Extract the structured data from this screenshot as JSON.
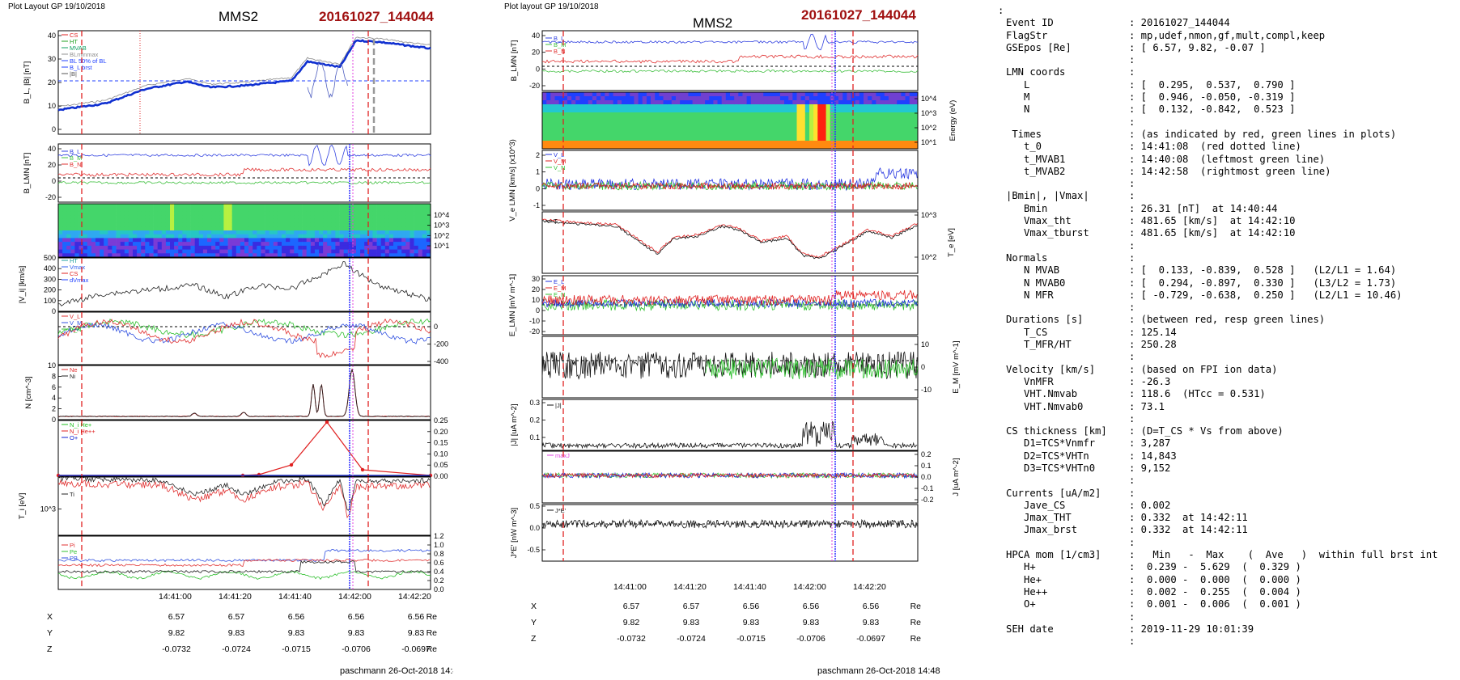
{
  "left": {
    "header": "Plot Layout GP 19/10/2018",
    "title": "MMS2",
    "event": "20161027_144044",
    "footer": "paschmann 26-Oct-2018 14:48",
    "time_ticks": [
      "14:41:00",
      "14:41:20",
      "14:41:40",
      "14:42:00",
      "14:42:20"
    ],
    "coords": {
      "X": [
        "6.57",
        "6.57",
        "6.56",
        "6.56",
        "6.56"
      ],
      "Y": [
        "9.82",
        "9.83",
        "9.83",
        "9.83",
        "9.83"
      ],
      "Z": [
        "-0.0732",
        "-0.0724",
        "-0.0715",
        "-0.0706",
        "-0.0697"
      ],
      "unit": "Re"
    },
    "panels": {
      "b": {
        "ylabel": "B_L, |B| [nT]",
        "ticks": [
          "40",
          "30",
          "20",
          "10",
          "0"
        ],
        "legend": [
          "CS",
          "HT",
          "MVAB",
          "BLminmax",
          "BL 50% of BL",
          "B_L brst",
          "|B|"
        ]
      },
      "blmn": {
        "ylabel": "B_LMN [nT]",
        "ticks": [
          "40",
          "20",
          "0",
          "-20"
        ],
        "legend": [
          "B_L",
          "B_M",
          "B_N"
        ]
      },
      "energy": {
        "ylabel": "Energy (eV)",
        "ticks": [
          "10^4",
          "10^3",
          "10^2",
          "10^1"
        ]
      },
      "vi": {
        "ylabel": "|V_i| [km/s]",
        "ticks": [
          "500",
          "400",
          "300",
          "200",
          "100",
          "0"
        ],
        "legend": [
          "HT",
          "Vmax",
          "CS",
          "dVmax"
        ]
      },
      "vilmn": {
        "ylabel": "V_i LMN [km/s]",
        "ticks": [
          "0",
          "-200",
          "-400"
        ],
        "legend": [
          "V_L",
          "V_M",
          "V_N"
        ]
      },
      "n": {
        "ylabel": "N [cm^-3]",
        "ticks": [
          "10",
          "8",
          "6",
          "4",
          "2",
          "0"
        ],
        "legend": [
          "Ne",
          "Ni"
        ]
      },
      "nhpca": {
        "ylabel": "N_i [cm^-3]",
        "ticks": [
          "0.25",
          "0.20",
          "0.15",
          "0.10",
          "0.05",
          "0.00"
        ],
        "legend": [
          "N_i He+",
          "N_i He++",
          "O+"
        ]
      },
      "ti": {
        "ylabel": "T_i [eV]",
        "ticks": [
          "10^3"
        ],
        "legend": [
          "Ti"
        ]
      },
      "p": {
        "ylabel": "P [nPa]",
        "ticks": [
          "1.2",
          "1.0",
          "0.8",
          "0.6",
          "0.4",
          "0.2",
          "0.0"
        ],
        "legend": [
          "Pi",
          "Pe",
          "PB"
        ]
      }
    }
  },
  "middle": {
    "header": "Plot layout GP 19/10/2018",
    "title": "MMS2",
    "event": "20161027_144044",
    "footer": "paschmann 26-Oct-2018 14:48",
    "time_ticks": [
      "14:41:00",
      "14:41:20",
      "14:41:40",
      "14:42:00",
      "14:42:20"
    ],
    "coords": {
      "X": [
        "6.57",
        "6.57",
        "6.56",
        "6.56",
        "6.56"
      ],
      "Y": [
        "9.82",
        "9.83",
        "9.83",
        "9.83",
        "9.83"
      ],
      "Z": [
        "-0.0732",
        "-0.0724",
        "-0.0715",
        "-0.0706",
        "-0.0697"
      ],
      "unit": "Re"
    },
    "panels": {
      "blmn": {
        "ylabel": "B_LMN [nT]",
        "ticks": [
          "40",
          "20",
          "0",
          "-20"
        ],
        "legend": [
          "B_L",
          "B_M",
          "B_N"
        ]
      },
      "energy": {
        "ylabel": "Energy (eV)",
        "ticks": [
          "10^4",
          "10^3",
          "10^2",
          "10^1"
        ]
      },
      "velmn": {
        "ylabel": "V_e LMN [km/s] (x10^3)",
        "ticks": [
          "2",
          "1",
          "0",
          "-1"
        ],
        "legend": [
          "V_L",
          "V_M",
          "V_N"
        ]
      },
      "te": {
        "ylabel": "T_e [eV]",
        "ticks": [
          "10^3",
          "10^2"
        ],
        "legend": [
          "T"
        ]
      },
      "elmn": {
        "ylabel": "E_LMN [mV m^-1]",
        "ticks": [
          "30",
          "20",
          "10",
          "0",
          "-10",
          "-20"
        ],
        "legend": [
          "E_L",
          "E_M",
          "E_N"
        ]
      },
      "em": {
        "ylabel": "E_M [mV m^-1]",
        "ticks": [
          "10",
          "0",
          "-10"
        ]
      },
      "j": {
        "ylabel": "|J| [uA m^-2]",
        "ticks": [
          "0.3",
          "0.2",
          "0.1"
        ],
        "legend": [
          "|J|"
        ]
      },
      "jlmn": {
        "ylabel": "J [uA m^-2]",
        "ticks": [
          "0.2",
          "0.1",
          "0.0",
          "-0.1",
          "-0.2"
        ],
        "legend": [
          "maxJ"
        ]
      },
      "je": {
        "ylabel": "J*E' [nW m^-3]",
        "ticks": [
          "0.5",
          "0.0",
          "-0.5"
        ],
        "legend": [
          "J*E'"
        ]
      }
    }
  },
  "summary": [
    {
      "label": ":",
      "value": ""
    },
    {
      "label": "Event ID",
      "value": ": 20161027_144044"
    },
    {
      "label": "FlagStr",
      "value": ": mp,udef,nmon,gf,mult,compl,keep"
    },
    {
      "label": "GSEpos [Re]",
      "value": ": [ 6.57, 9.82, -0.07 ]"
    },
    {
      "label": "",
      "value": ":"
    },
    {
      "label": "LMN coords",
      "value": ":"
    },
    {
      "label": "   L",
      "value": ": [  0.295,  0.537,  0.790 ]"
    },
    {
      "label": "   M",
      "value": ": [  0.946, -0.050, -0.319 ]"
    },
    {
      "label": "   N",
      "value": ": [  0.132, -0.842,  0.523 ]"
    },
    {
      "label": "",
      "value": ":"
    },
    {
      "label": " Times",
      "value": ": (as indicated by red, green lines in plots)"
    },
    {
      "label": "   t_0",
      "value": ": 14:41:08  (red dotted line)"
    },
    {
      "label": "   t_MVAB1",
      "value": ": 14:40:08  (leftmost green line)"
    },
    {
      "label": "   t_MVAB2",
      "value": ": 14:42:58  (rightmost green line)"
    },
    {
      "label": "",
      "value": ":"
    },
    {
      "label": "|Bmin|, |Vmax|",
      "value": ":"
    },
    {
      "label": "   Bmin",
      "value": ": 26.31 [nT]  at 14:40:44"
    },
    {
      "label": "   Vmax_tht",
      "value": ": 481.65 [km/s]  at 14:42:10"
    },
    {
      "label": "   Vmax_tburst",
      "value": ": 481.65 [km/s]  at 14:42:10"
    },
    {
      "label": "",
      "value": ":"
    },
    {
      "label": "Normals",
      "value": ":"
    },
    {
      "label": "   N MVAB",
      "value": ": [  0.133, -0.839,  0.528 ]   (L2/L1 = 1.64)"
    },
    {
      "label": "   N MVAB0",
      "value": ": [  0.294, -0.897,  0.330 ]   (L3/L2 = 1.73)"
    },
    {
      "label": "   N MFR",
      "value": ": [ -0.729, -0.638,  0.250 ]   (L2/L1 = 10.46)"
    },
    {
      "label": "",
      "value": ":"
    },
    {
      "label": "Durations [s]",
      "value": ": (between red, resp green lines)"
    },
    {
      "label": "   T_CS",
      "value": ": 125.14"
    },
    {
      "label": "   T_MFR/HT",
      "value": ": 250.28"
    },
    {
      "label": "",
      "value": ":"
    },
    {
      "label": "Velocity [km/s]",
      "value": ": (based on FPI ion data)"
    },
    {
      "label": "   VnMFR",
      "value": ": -26.3"
    },
    {
      "label": "   VHT.Nmvab",
      "value": ": 118.6  (HTcc = 0.531)"
    },
    {
      "label": "   VHT.Nmvab0",
      "value": ": 73.1"
    },
    {
      "label": "",
      "value": ":"
    },
    {
      "label": "CS thickness [km]",
      "value": ": (D=T_CS * Vs from above)"
    },
    {
      "label": "   D1=TCS*Vnmfr",
      "value": ": 3,287"
    },
    {
      "label": "   D2=TCS*VHTn",
      "value": ": 14,843"
    },
    {
      "label": "   D3=TCS*VHTn0",
      "value": ": 9,152"
    },
    {
      "label": "",
      "value": ":"
    },
    {
      "label": "Currents [uA/m2]",
      "value": ":"
    },
    {
      "label": "   Jave_CS",
      "value": ": 0.002"
    },
    {
      "label": "   Jmax_THT",
      "value": ": 0.332  at 14:42:11"
    },
    {
      "label": "   Jmax_brst",
      "value": ": 0.332  at 14:42:11"
    },
    {
      "label": "",
      "value": ":"
    },
    {
      "label": "HPCA mom [1/cm3]",
      "value": ":   Min   -  Max    (  Ave   )  within full brst int"
    },
    {
      "label": "   H+",
      "value": ":  0.239 -  5.629  (  0.329 )"
    },
    {
      "label": "   He+",
      "value": ":  0.000 -  0.000  (  0.000 )"
    },
    {
      "label": "   He++",
      "value": ":  0.002 -  0.255  (  0.004 )"
    },
    {
      "label": "   O+",
      "value": ":  0.001 -  0.006  (  0.001 )"
    },
    {
      "label": "",
      "value": ":"
    },
    {
      "label": "SEH date",
      "value": ": 2019-11-29 10:01:39"
    },
    {
      "label": "",
      "value": ":"
    }
  ],
  "chart_data": [
    {
      "type": "line",
      "title": "MMS2",
      "x": [
        "14:40:50",
        "14:41:00",
        "14:41:10",
        "14:41:20",
        "14:41:30",
        "14:41:40",
        "14:41:50",
        "14:42:00",
        "14:42:10",
        "14:42:20",
        "14:42:30"
      ],
      "series": [
        {
          "name": "|B|",
          "values": [
            25,
            29,
            33,
            34,
            32,
            31,
            31,
            34,
            38,
            42,
            38
          ]
        },
        {
          "name": "B_L brst",
          "values": [
            22,
            27,
            31,
            33,
            30,
            29,
            30,
            33,
            36,
            42,
            38
          ]
        }
      ],
      "ylim": [
        0,
        45
      ]
    },
    {
      "type": "line",
      "x": [
        "14:40:50",
        "14:41:00",
        "14:41:10",
        "14:41:20",
        "14:41:30",
        "14:41:40",
        "14:41:50",
        "14:42:00",
        "14:42:10",
        "14:42:20",
        "14:42:30"
      ],
      "series": [
        {
          "name": "B_L",
          "values": [
            22,
            27,
            31,
            33,
            30,
            29,
            30,
            33,
            36,
            40,
            38
          ]
        },
        {
          "name": "B_M",
          "values": [
            4,
            5,
            5,
            4,
            6,
            5,
            4,
            6,
            10,
            8,
            6
          ]
        },
        {
          "name": "B_N",
          "values": [
            -3,
            -4,
            -5,
            -6,
            -7,
            -8,
            -6,
            -7,
            -9,
            -6,
            -5
          ]
        }
      ],
      "ylim": [
        -25,
        45
      ]
    },
    {
      "type": "line",
      "x": [
        "14:40:50",
        "14:41:00",
        "14:41:10",
        "14:41:20",
        "14:41:30",
        "14:41:40",
        "14:41:50",
        "14:42:00",
        "14:42:10",
        "14:42:20",
        "14:42:30"
      ],
      "series": [
        {
          "name": "|V_i|",
          "values": [
            80,
            120,
            150,
            200,
            160,
            200,
            230,
            300,
            420,
            250,
            100
          ]
        }
      ],
      "ylim": [
        0,
        500
      ]
    },
    {
      "type": "line",
      "x": [
        "14:40:50",
        "14:41:00",
        "14:41:10",
        "14:41:20",
        "14:41:30",
        "14:41:40",
        "14:41:50",
        "14:42:00",
        "14:42:10",
        "14:42:20",
        "14:42:30"
      ],
      "series": [
        {
          "name": "Ne",
          "values": [
            0.3,
            0.3,
            0.3,
            0.4,
            0.6,
            0.4,
            0.3,
            0.8,
            9.5,
            0.5,
            0.3
          ]
        },
        {
          "name": "Ni",
          "values": [
            0.3,
            0.3,
            0.3,
            0.4,
            0.6,
            0.4,
            0.3,
            0.8,
            9.5,
            0.5,
            0.3
          ]
        }
      ],
      "ylim": [
        0,
        10
      ]
    },
    {
      "type": "line",
      "x": [
        "14:40:50",
        "14:41:00",
        "14:41:10",
        "14:41:20",
        "14:41:30",
        "14:41:40",
        "14:41:50",
        "14:42:00",
        "14:42:10",
        "14:42:20",
        "14:42:30"
      ],
      "series": [
        {
          "name": "N_i He++",
          "values": [
            0.0,
            0.0,
            0.0,
            0.0,
            0.0,
            0.0,
            0.0,
            0.05,
            0.255,
            0.12,
            0.0
          ]
        }
      ],
      "ylim": [
        0,
        0.25
      ]
    }
  ]
}
